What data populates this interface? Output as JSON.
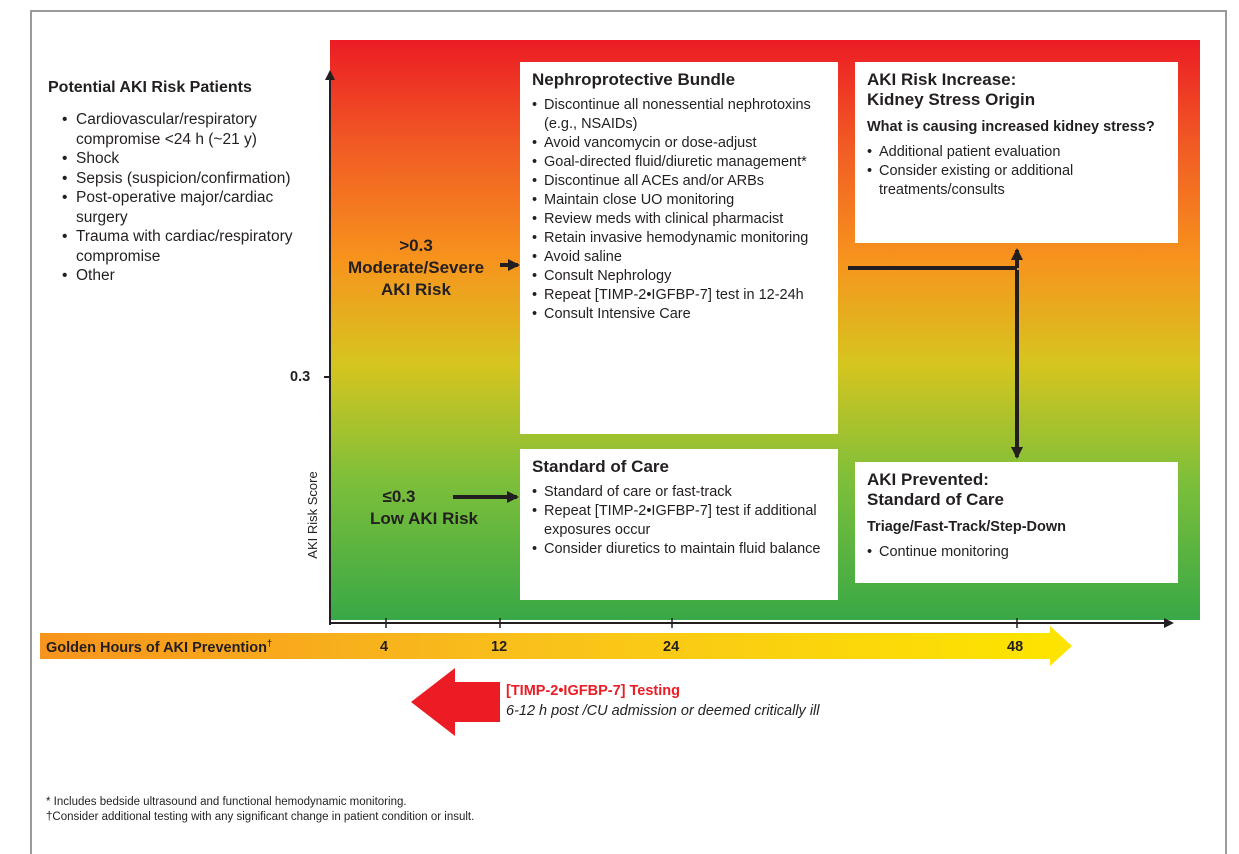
{
  "colors": {
    "high": "#ec1c24",
    "moderate": "#f7941d",
    "low": "#39a846",
    "golden_start": "#f7941d",
    "golden_end": "#fde400",
    "timp": "#ec1c24"
  },
  "patients": {
    "title": "Potential AKI Risk Patients",
    "items": [
      "Cardiovascular/respiratory compromise <24 h (~21 y)",
      "Shock",
      "Sepsis (suspicion/confirmation)",
      "Post-operative major/cardiac surgery",
      "Trauma with cardiac/respiratory compromise",
      "Other"
    ]
  },
  "axis": {
    "ylabel": "AKI Risk Score",
    "threshold": "0.3"
  },
  "risk_high": {
    "line1": ">0.3",
    "line2": "Moderate/Severe",
    "line3": "AKI Risk"
  },
  "risk_low": {
    "line1": "≤0.3",
    "line2": "Low AKI Risk"
  },
  "nephro": {
    "title": "Nephroprotective Bundle",
    "items": [
      "Discontinue all nonessential nephrotoxins (e.g., NSAIDs)",
      "Avoid vancomycin or dose-adjust",
      "Goal-directed fluid/diuretic management*",
      "Discontinue all ACEs and/or ARBs",
      "Maintain close UO monitoring",
      "Review meds with clinical pharmacist",
      "Retain invasive hemodynamic monitoring",
      "Avoid saline",
      "Consult Nephrology",
      "Repeat [TIMP-2•IGFBP-7] test in 12-24h",
      "Consult Intensive Care"
    ]
  },
  "standard": {
    "title": "Standard of Care",
    "items": [
      "Standard of care or fast-track",
      "Repeat [TIMP-2•IGFBP-7] test if additional exposures occur",
      "Consider diuretics to maintain fluid balance"
    ]
  },
  "increase": {
    "title1": "AKI Risk Increase:",
    "title2": "Kidney Stress Origin",
    "question": "What is causing increased kidney stress?",
    "items": [
      "Additional patient evaluation",
      "Consider existing or additional treatments/consults"
    ]
  },
  "prevented": {
    "title1": "AKI Prevented:",
    "title2": "Standard of Care",
    "sub": "Triage/Fast-Track/Step-Down",
    "items": [
      "Continue monitoring"
    ]
  },
  "golden": {
    "label": "Golden Hours of AKI Prevention",
    "dagger": "†",
    "ticks": [
      "4",
      "12",
      "24",
      "48"
    ]
  },
  "timp": {
    "title": "[TIMP-2•IGFBP-7] Testing",
    "sub": "6-12 h post /CU admission or deemed critically ill"
  },
  "footnotes": [
    "* Includes bedside ultrasound and functional hemodynamic monitoring.",
    "†Consider additional testing with any significant change in patient condition or insult."
  ]
}
